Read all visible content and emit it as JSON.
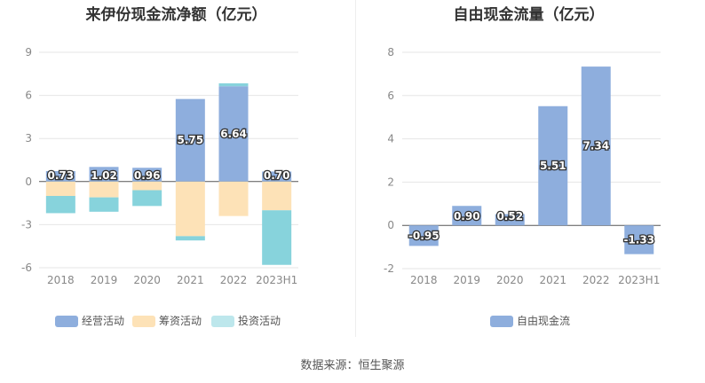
{
  "source_text": "数据来源：恒生聚源",
  "colors": {
    "operating": "#8eaedd",
    "financing": "#fde2b7",
    "investing": "#87d3dc",
    "investing_legend": "#bde7ec",
    "fcf": "#8eaedd",
    "grid": "#e6e6e6",
    "axis_text": "#888888"
  },
  "chart_data": [
    {
      "type": "bar",
      "stacked": true,
      "title": "来伊份现金流净额（亿元）",
      "categories": [
        "2018",
        "2019",
        "2020",
        "2021",
        "2022",
        "2023H1"
      ],
      "ylim": [
        -6,
        9
      ],
      "yticks": [
        -6,
        -3,
        0,
        3,
        6,
        9
      ],
      "grid": true,
      "legend_position": "bottom",
      "series": [
        {
          "name": "经营活动",
          "values": [
            0.73,
            1.02,
            0.96,
            5.75,
            6.64,
            0.7
          ],
          "labels": [
            "0.73",
            "1.02",
            "0.96",
            "5.75",
            "6.64",
            "0.70"
          ]
        },
        {
          "name": "筹资活动",
          "values": [
            -1.0,
            -1.1,
            -0.6,
            -3.8,
            -2.4,
            -2.0
          ]
        },
        {
          "name": "投资活动",
          "values": [
            -1.2,
            -1.0,
            -1.1,
            -0.3,
            0.2,
            -3.8
          ]
        }
      ]
    },
    {
      "type": "bar",
      "title": "自由现金流量（亿元）",
      "categories": [
        "2018",
        "2019",
        "2020",
        "2021",
        "2022",
        "2023H1"
      ],
      "ylim": [
        -2,
        8
      ],
      "yticks": [
        -2,
        0,
        2,
        4,
        6,
        8
      ],
      "grid": true,
      "legend_position": "bottom",
      "series": [
        {
          "name": "自由现金流",
          "values": [
            -0.95,
            0.9,
            0.52,
            5.51,
            7.34,
            -1.33
          ],
          "labels": [
            "-0.95",
            "0.90",
            "0.52",
            "5.51",
            "7.34",
            "-1.33"
          ]
        }
      ]
    }
  ]
}
